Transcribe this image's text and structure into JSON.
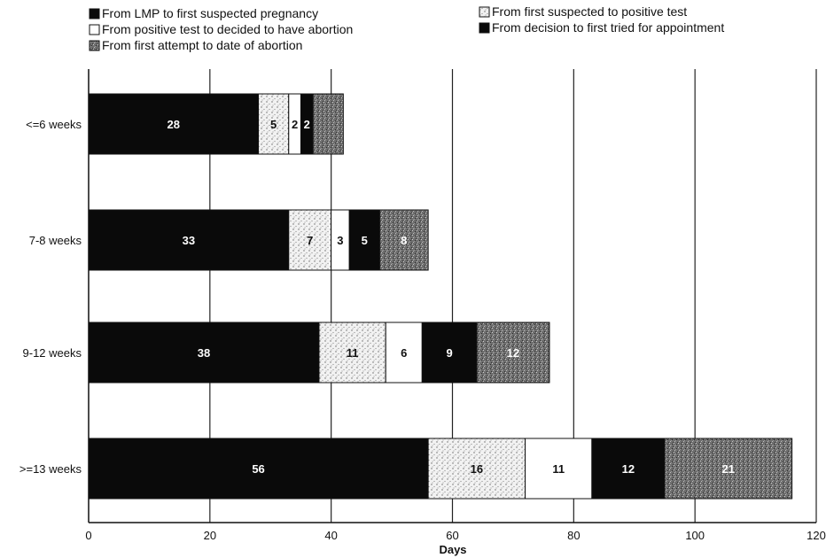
{
  "chart_data": {
    "type": "bar",
    "orientation": "horizontal",
    "stacked": true,
    "title": "",
    "xlabel": "Days",
    "ylabel": "",
    "xlim": [
      0,
      120
    ],
    "xticks": [
      0,
      20,
      40,
      60,
      80,
      100,
      120
    ],
    "grid": "vertical",
    "legend_position": "top",
    "categories": [
      "<=6 weeks",
      "7-8 weeks",
      "9-12 weeks",
      ">=13 weeks"
    ],
    "series": [
      {
        "name": "From LMP to first suspected pregnancy",
        "values": [
          28,
          33,
          38,
          56
        ],
        "labels": [
          "28",
          "33",
          "38",
          "56"
        ],
        "fill": "black"
      },
      {
        "name": "From first suspected to positive test",
        "values": [
          5,
          7,
          11,
          16
        ],
        "labels": [
          "5",
          "7",
          "11",
          "16"
        ],
        "fill": "dots"
      },
      {
        "name": "From positive test to decided to have abortion",
        "values": [
          2,
          3,
          6,
          11
        ],
        "labels": [
          "2",
          "3",
          "6",
          "11"
        ],
        "fill": "white"
      },
      {
        "name": "From decision to first tried for appointment",
        "values": [
          2,
          5,
          9,
          12
        ],
        "labels": [
          "2",
          "5",
          "9",
          "12"
        ],
        "fill": "black"
      },
      {
        "name": "From first attempt to date of abortion",
        "values": [
          5,
          8,
          12,
          21
        ],
        "labels": [
          "",
          "8",
          "12",
          "21"
        ],
        "fill": "grain"
      }
    ]
  },
  "legend": {
    "items": [
      {
        "label": "From LMP to first suspected pregnancy",
        "series": 0
      },
      {
        "label": "From positive test to decided to have abortion",
        "series": 2
      },
      {
        "label": "From first attempt to date of abortion",
        "series": 4
      },
      {
        "label": "From first suspected to positive test",
        "series": 1
      },
      {
        "label": "From decision to first tried for appointment",
        "series": 3
      }
    ]
  }
}
